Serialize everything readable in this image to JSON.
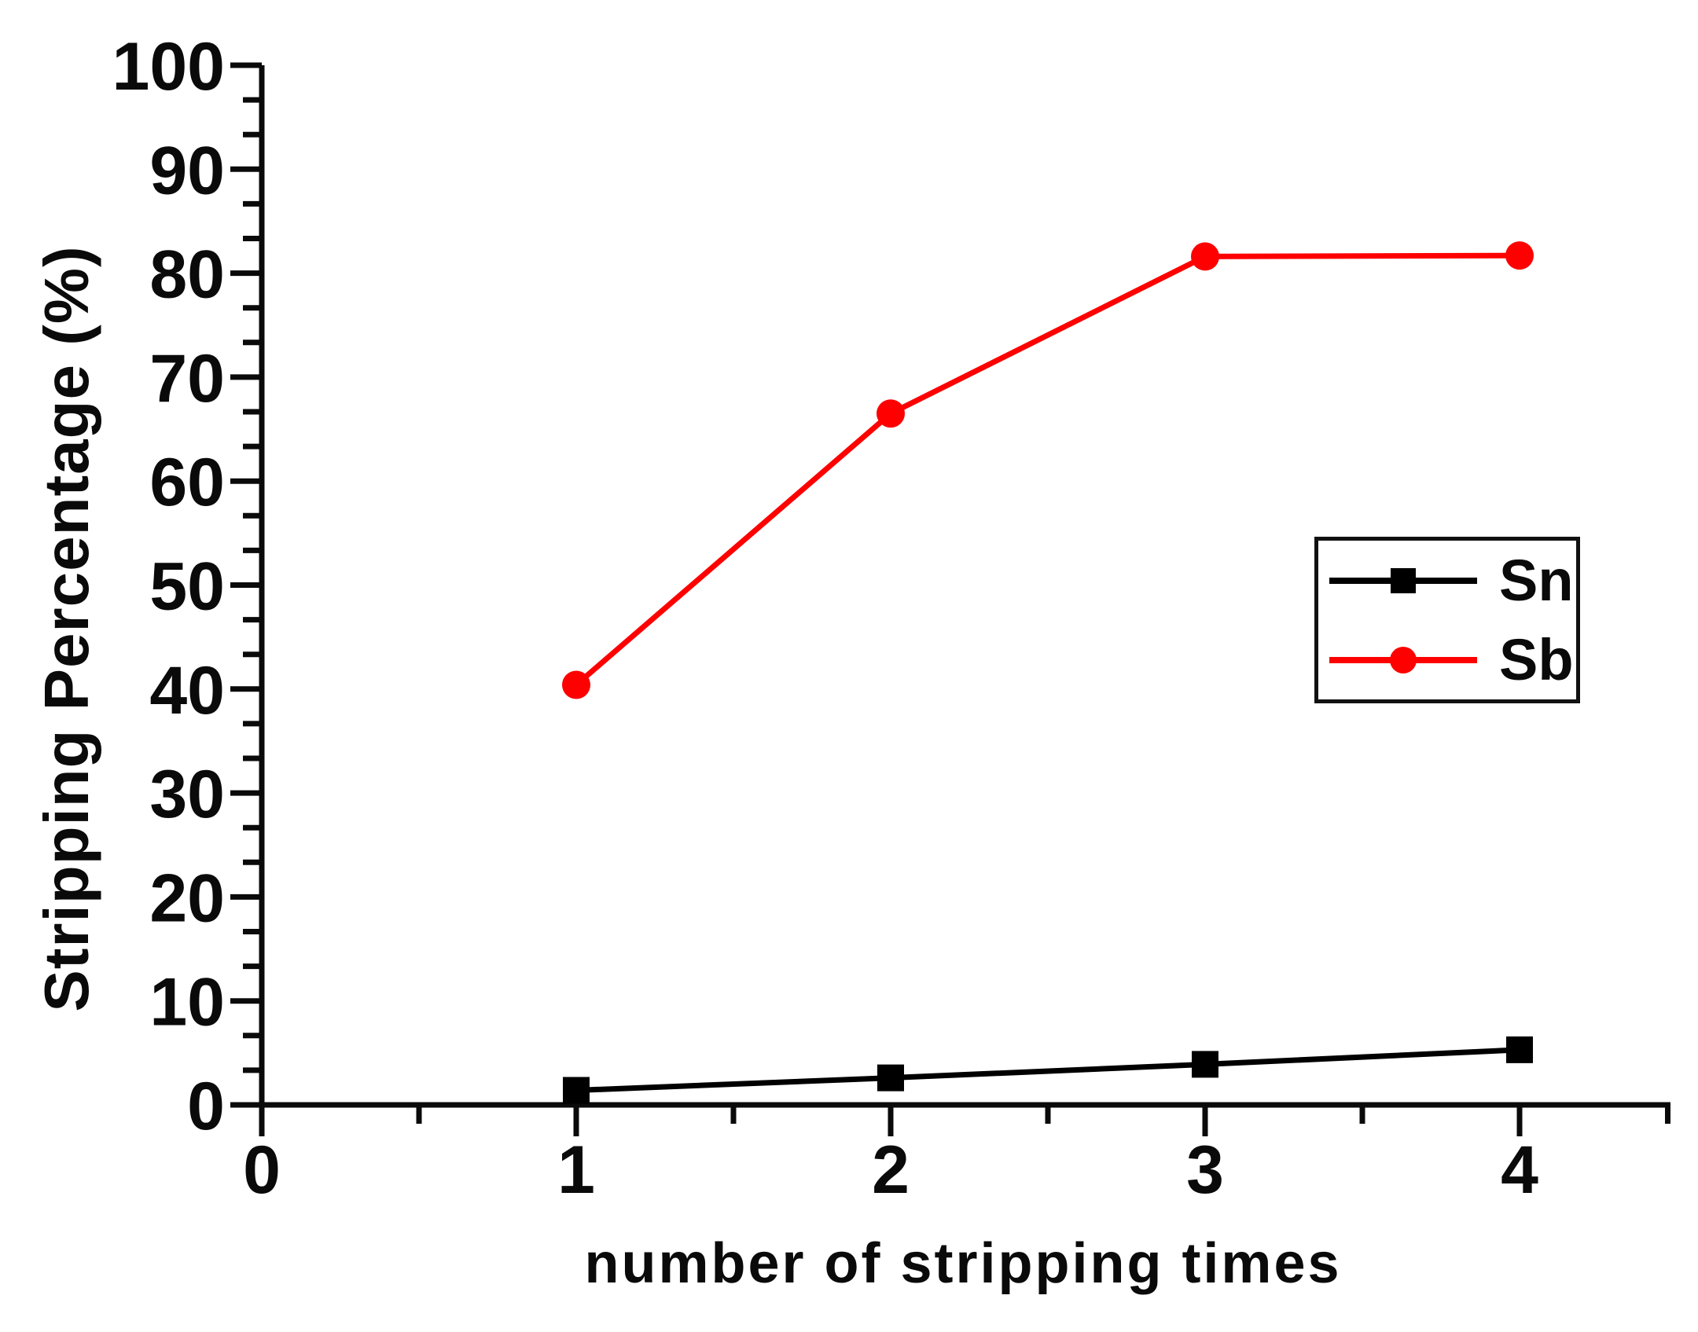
{
  "figure": {
    "background": "#ffffff",
    "axis_color": "#0a0a0a"
  },
  "chart_data": {
    "type": "line",
    "title": "",
    "xlabel": "number of stripping times",
    "ylabel": "Stripping Percentage (%)",
    "x": [
      1,
      2,
      3,
      4
    ],
    "series": [
      {
        "name": "Sn",
        "color": "#000000",
        "marker": "square",
        "values": [
          1.4,
          2.6,
          3.9,
          5.3
        ]
      },
      {
        "name": "Sb",
        "color": "#fe0000",
        "marker": "circle",
        "values": [
          40.4,
          66.5,
          81.6,
          81.7
        ]
      }
    ],
    "xlim": [
      0,
      4.48
    ],
    "ylim": [
      0,
      100
    ],
    "x_major_ticks": [
      0,
      1,
      2,
      3,
      4
    ],
    "x_tick_labels": [
      "0",
      "1",
      "2",
      "3",
      "4"
    ],
    "x_minor_ticks": [
      0.5,
      1.5,
      2.5,
      3.5,
      4.48
    ],
    "y_major_ticks": [
      0,
      10,
      20,
      30,
      40,
      50,
      60,
      70,
      80,
      90,
      100
    ],
    "y_tick_labels": [
      "0",
      "10",
      "20",
      "30",
      "40",
      "50",
      "60",
      "70",
      "80",
      "90",
      "100"
    ],
    "y_minors_per_major": 2,
    "grid": false,
    "legend_position": "right-middle",
    "legend_entries": [
      "Sn",
      "Sb"
    ]
  }
}
